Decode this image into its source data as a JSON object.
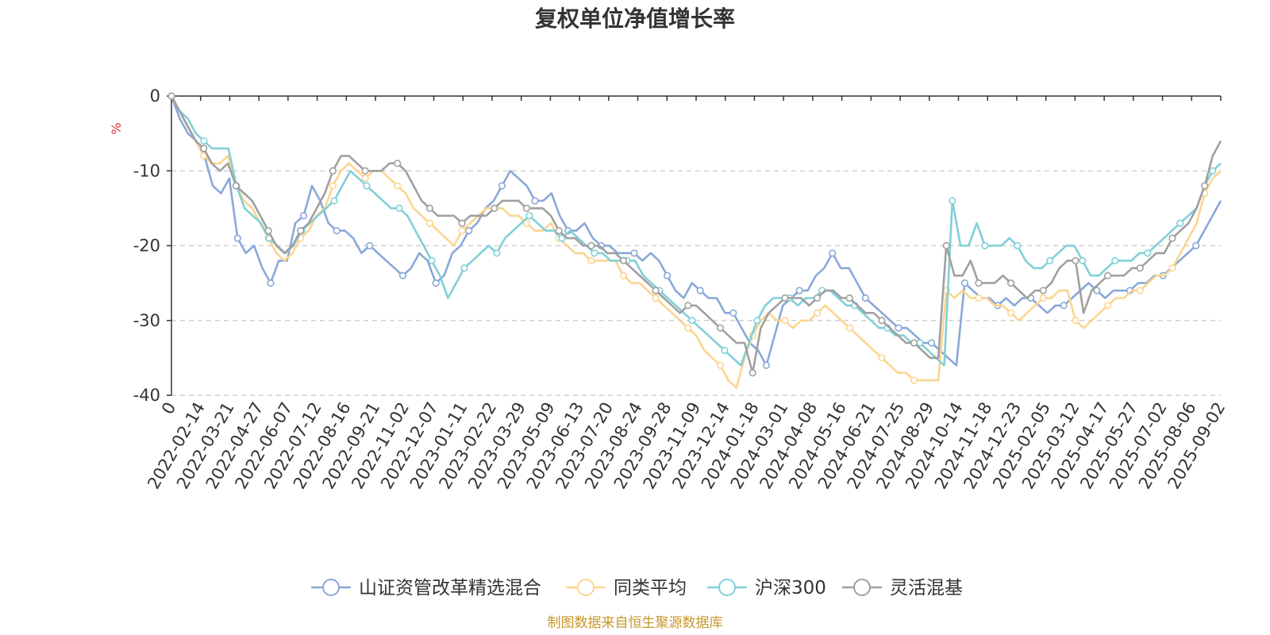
{
  "chart_data": {
    "type": "line",
    "title": "复权单位净值增长率",
    "unit_label": "%",
    "ylim": [
      -40,
      0
    ],
    "yticks": [
      0,
      -10,
      -20,
      -30,
      -40
    ],
    "grid": "dashed-horizontal",
    "legend_position": "bottom-center",
    "x_tick_labels": [
      "0",
      "2022-02-14",
      "2022-03-21",
      "2022-04-27",
      "2022-06-07",
      "2022-07-12",
      "2022-08-16",
      "2022-09-21",
      "2022-11-02",
      "2022-12-07",
      "2023-01-11",
      "2023-02-22",
      "2023-03-29",
      "2023-05-09",
      "2023-06-13",
      "2023-07-20",
      "2023-08-24",
      "2023-09-28",
      "2023-11-09",
      "2023-12-14",
      "2024-01-18",
      "2024-03-01",
      "2024-04-08",
      "2024-05-16",
      "2024-06-21",
      "2024-07-25",
      "2024-08-29",
      "2024-10-14",
      "2024-11-18",
      "2024-12-23",
      "2025-02-05",
      "2025-03-12",
      "2025-04-17",
      "2025-05-27",
      "2025-07-02",
      "2025-08-06",
      "2025-09-02"
    ],
    "series": [
      {
        "name": "山证资管改革精选混合",
        "color": "#8aa8d8",
        "values": [
          0,
          -3,
          -5,
          -6,
          -8,
          -12,
          -13,
          -11,
          -19,
          -21,
          -20,
          -23,
          -25,
          -22,
          -22,
          -17,
          -16,
          -12,
          -14,
          -17,
          -18,
          -18,
          -19,
          -21,
          -20,
          -21,
          -22,
          -23,
          -24,
          -23,
          -21,
          -22,
          -25,
          -24,
          -21,
          -20,
          -18,
          -17,
          -15,
          -14,
          -12,
          -10,
          -11,
          -12,
          -14,
          -14,
          -13,
          -16,
          -18,
          -18,
          -17,
          -19,
          -20,
          -20,
          -21,
          -21,
          -21,
          -22,
          -21,
          -22,
          -24,
          -26,
          -27,
          -25,
          -26,
          -27,
          -27,
          -29,
          -29,
          -31,
          -33,
          -34,
          -36,
          -32,
          -28,
          -27,
          -26,
          -26,
          -24,
          -23,
          -21,
          -23,
          -23,
          -25,
          -27,
          -28,
          -29,
          -30,
          -31,
          -31,
          -32,
          -33,
          -33,
          -34,
          -35,
          -36,
          -25,
          -26,
          -27,
          -27,
          -28,
          -27,
          -28,
          -27,
          -27,
          -28,
          -29,
          -28,
          -28,
          -27,
          -26,
          -25,
          -26,
          -27,
          -26,
          -26,
          -26,
          -25,
          -25,
          -24,
          -24,
          -23,
          -22,
          -21,
          -20,
          -18,
          -16,
          -14
        ]
      },
      {
        "name": "同类平均",
        "color": "#fcd590",
        "values": [
          0,
          -2,
          -4,
          -6,
          -8,
          -9,
          -9,
          -8,
          -12,
          -14,
          -15,
          -17,
          -19,
          -21,
          -22,
          -21,
          -19,
          -18,
          -16,
          -15,
          -12,
          -10,
          -9,
          -10,
          -11,
          -10,
          -10,
          -11,
          -12,
          -13,
          -15,
          -16,
          -17,
          -18,
          -19,
          -20,
          -18,
          -17,
          -16,
          -15,
          -15,
          -15,
          -16,
          -16,
          -17,
          -18,
          -18,
          -17,
          -19,
          -20,
          -21,
          -21,
          -22,
          -22,
          -22,
          -22,
          -24,
          -25,
          -25,
          -26,
          -27,
          -28,
          -29,
          -30,
          -31,
          -32,
          -34,
          -35,
          -36,
          -38,
          -39,
          -35,
          -32,
          -30,
          -29,
          -30,
          -30,
          -31,
          -30,
          -30,
          -29,
          -28,
          -29,
          -30,
          -31,
          -32,
          -33,
          -34,
          -35,
          -36,
          -37,
          -37,
          -38,
          -38,
          -38,
          -38,
          -26,
          -27,
          -26,
          -27,
          -27,
          -27,
          -28,
          -28,
          -29,
          -30,
          -29,
          -28,
          -27,
          -27,
          -26,
          -26,
          -30,
          -31,
          -30,
          -29,
          -28,
          -27,
          -27,
          -26,
          -26,
          -25,
          -24,
          -24,
          -23,
          -21,
          -19,
          -17,
          -13,
          -11,
          -10
        ]
      },
      {
        "name": "沪深300",
        "color": "#80d0d8",
        "values": [
          0,
          -2,
          -3,
          -5,
          -6,
          -7,
          -7,
          -7,
          -12,
          -15,
          -16,
          -17,
          -19,
          -20,
          -21,
          -20,
          -18,
          -17,
          -16,
          -15,
          -14,
          -12,
          -10,
          -11,
          -12,
          -13,
          -14,
          -15,
          -15,
          -16,
          -18,
          -20,
          -22,
          -24,
          -27,
          -25,
          -23,
          -22,
          -21,
          -20,
          -21,
          -19,
          -18,
          -17,
          -16,
          -17,
          -18,
          -18,
          -19,
          -18,
          -19,
          -20,
          -21,
          -21,
          -22,
          -22,
          -22,
          -22,
          -24,
          -25,
          -26,
          -27,
          -28,
          -29,
          -30,
          -31,
          -32,
          -33,
          -34,
          -35,
          -36,
          -33,
          -30,
          -28,
          -27,
          -27,
          -27,
          -28,
          -27,
          -27,
          -26,
          -26,
          -27,
          -28,
          -28,
          -29,
          -30,
          -31,
          -31,
          -32,
          -32,
          -33,
          -33,
          -34,
          -35,
          -36,
          -14,
          -20,
          -20,
          -17,
          -20,
          -20,
          -20,
          -19,
          -20,
          -22,
          -23,
          -23,
          -22,
          -21,
          -20,
          -20,
          -22,
          -24,
          -24,
          -23,
          -22,
          -22,
          -22,
          -21,
          -21,
          -20,
          -19,
          -18,
          -17,
          -16,
          -15,
          -12,
          -10,
          -9
        ]
      },
      {
        "name": "灵活混基",
        "color": "#a0a0a0",
        "values": [
          0,
          -2,
          -4,
          -6,
          -7,
          -9,
          -10,
          -9,
          -12,
          -13,
          -14,
          -16,
          -18,
          -20,
          -21,
          -20,
          -18,
          -17,
          -15,
          -13,
          -10,
          -8,
          -8,
          -9,
          -10,
          -10,
          -10,
          -9,
          -9,
          -10,
          -12,
          -14,
          -15,
          -16,
          -16,
          -16,
          -17,
          -16,
          -16,
          -16,
          -15,
          -14,
          -14,
          -14,
          -15,
          -15,
          -15,
          -16,
          -18,
          -19,
          -19,
          -20,
          -20,
          -20,
          -21,
          -21,
          -22,
          -23,
          -24,
          -25,
          -26,
          -27,
          -28,
          -29,
          -28,
          -28,
          -29,
          -30,
          -31,
          -32,
          -33,
          -33,
          -37,
          -31,
          -29,
          -28,
          -27,
          -27,
          -27,
          -28,
          -27,
          -26,
          -26,
          -27,
          -27,
          -28,
          -29,
          -29,
          -30,
          -31,
          -32,
          -33,
          -33,
          -34,
          -35,
          -35,
          -20,
          -24,
          -24,
          -22,
          -25,
          -25,
          -25,
          -24,
          -25,
          -26,
          -27,
          -26,
          -26,
          -25,
          -23,
          -22,
          -22,
          -29,
          -26,
          -25,
          -24,
          -24,
          -24,
          -23,
          -23,
          -22,
          -21,
          -21,
          -19,
          -18,
          -17,
          -15,
          -12,
          -8,
          -6
        ]
      }
    ]
  },
  "source_text": "制图数据来自恒生聚源数据库"
}
